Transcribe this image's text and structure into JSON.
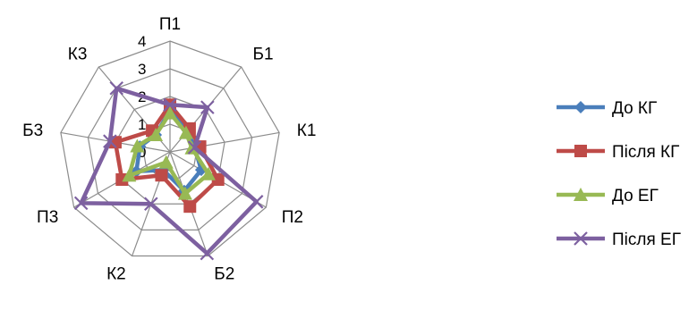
{
  "chart_data": {
    "type": "radar",
    "axes": [
      "П1",
      "Б1",
      "К1",
      "П2",
      "Б2",
      "К2",
      "П3",
      "Б3",
      "К3"
    ],
    "rlim": [
      0,
      4
    ],
    "ticks": [
      "0",
      "1",
      "2",
      "3",
      "4"
    ],
    "grid": true,
    "legend_position": "right",
    "series": [
      {
        "name": "До КГ",
        "color": "#4a7ebb",
        "marker": "diamond",
        "values": [
          1.5,
          1.0,
          0.9,
          1.3,
          1.5,
          0.7,
          1.4,
          1.1,
          0.8
        ]
      },
      {
        "name": "Після КГ",
        "color": "#be4b48",
        "marker": "square",
        "values": [
          1.7,
          1.1,
          1.1,
          2.0,
          2.1,
          0.9,
          2.0,
          2.0,
          1.0
        ]
      },
      {
        "name": "До ЕГ",
        "color": "#98b954",
        "marker": "triangle",
        "values": [
          1.4,
          0.9,
          0.8,
          1.6,
          1.6,
          0.4,
          1.7,
          1.2,
          0.8
        ]
      },
      {
        "name": "Після ЕГ",
        "color": "#7d60a0",
        "marker": "x",
        "values": [
          1.7,
          2.1,
          0.9,
          3.6,
          3.9,
          2.0,
          3.7,
          2.2,
          3.0
        ]
      }
    ]
  }
}
